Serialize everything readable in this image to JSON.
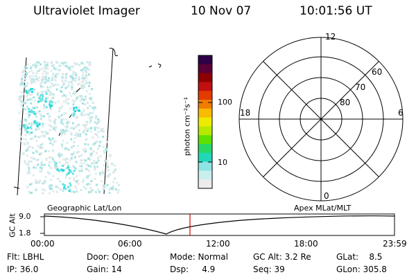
{
  "header": {
    "instrument": "Ultraviolet Imager",
    "date": "10 Nov 07",
    "time": "10:01:56 UT"
  },
  "colorbar": {
    "unit_label": "photon cm⁻²s⁻¹",
    "ticks": [
      "100",
      "10"
    ],
    "colors": [
      "#2e0047",
      "#5a0036",
      "#8d0000",
      "#c01010",
      "#e33a00",
      "#f07c00",
      "#f8bb00",
      "#eceb00",
      "#b8e800",
      "#5ee000",
      "#27d866",
      "#20d8b9",
      "#8ee3e3",
      "#c9eeee",
      "#ececec"
    ]
  },
  "polar_plot": {
    "mlt_labels": {
      "top": "12",
      "left": "18",
      "right": "6",
      "bottom": "0"
    },
    "lat_labels": [
      "60",
      "70",
      "80"
    ]
  },
  "timeline": {
    "ylabel": "GC Alt",
    "ymax": "9.0",
    "ymin": "1.8",
    "left_title": "Geographic Lat/Lon",
    "right_title": "Apex MLat/MLT",
    "xticks": [
      "00:00",
      "06:00",
      "12:00",
      "18:00",
      "23:59"
    ],
    "marker_color": "#cc0000"
  },
  "info": {
    "flt": "Flt: LBHL",
    "ip": "IP: 36.0",
    "door": "Door: Open",
    "gain": "Gain: 14",
    "mode": "Mode: Normal",
    "dsp": "Dsp:     4.9",
    "gcalt": "GC Alt: 3.2 Re",
    "seq": "Seq: 39",
    "glat": "GLat:    8.5",
    "glon": "GLon: 305.8"
  }
}
